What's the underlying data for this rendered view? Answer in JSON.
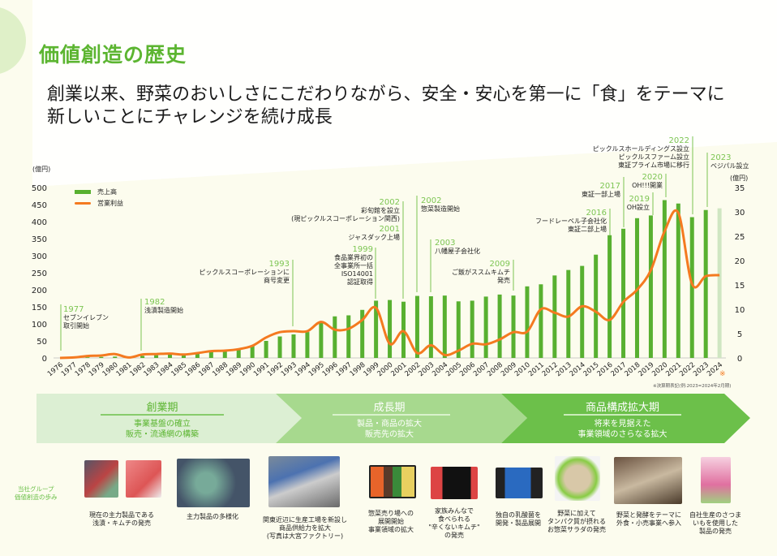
{
  "title": "価値創造の歴史",
  "subtitle": [
    "創業以来、野菜のおいしさにこだわりながら、安全・安心を第一に「食」をテーマに",
    "新しいことにチャレンジを続け成長"
  ],
  "chart_data": {
    "type": "bar+line",
    "x": [
      1976,
      1977,
      1978,
      1979,
      1980,
      1981,
      1982,
      1983,
      1984,
      1985,
      1986,
      1987,
      1988,
      1989,
      1990,
      1991,
      1992,
      1993,
      1994,
      1995,
      1996,
      1997,
      1998,
      1999,
      2000,
      2001,
      2002,
      2003,
      2004,
      2005,
      2006,
      2007,
      2008,
      2009,
      2010,
      2011,
      2012,
      2013,
      2014,
      2015,
      2016,
      2017,
      2018,
      2019,
      2020,
      2021,
      2022,
      2023,
      2024
    ],
    "series": [
      {
        "name": "売上高",
        "axis": "left",
        "type": "bar",
        "color": "#58b030",
        "values": [
          0,
          1,
          2,
          3,
          4,
          3,
          6,
          8,
          10,
          10,
          14,
          18,
          20,
          25,
          35,
          50,
          63,
          69,
          76,
          104,
          122,
          125,
          141,
          168,
          170,
          165,
          182,
          181,
          183,
          166,
          168,
          180,
          186,
          183,
          210,
          216,
          242,
          258,
          270,
          303,
          360,
          379,
          410,
          418,
          463,
          453,
          413,
          434,
          439
        ]
      },
      {
        "name": "営業利益",
        "axis": "right",
        "type": "line",
        "color": "#f47a20",
        "values": [
          0,
          0.1,
          0.4,
          0.5,
          0.8,
          0.1,
          0.7,
          0.8,
          0.9,
          0.7,
          1.0,
          1.4,
          1.5,
          1.8,
          2.5,
          4.2,
          5.3,
          5.5,
          5.5,
          7.4,
          5.8,
          6.0,
          7.8,
          10.3,
          2.9,
          5.5,
          1.0,
          2.6,
          0.6,
          1.5,
          2.9,
          2.8,
          3.8,
          5.3,
          5.4,
          10.0,
          9.3,
          8.5,
          10.6,
          9.5,
          7.8,
          11.5,
          14.0,
          18.0,
          26.0,
          29.8,
          15.2,
          16.8,
          17.0
        ]
      }
    ],
    "left_axis": {
      "label": "(億円)",
      "ticks": [
        0,
        50,
        100,
        150,
        200,
        250,
        300,
        350,
        400,
        450,
        500
      ],
      "range": [
        0,
        500
      ]
    },
    "right_axis": {
      "label": "(億円)",
      "ticks": [
        0,
        5,
        10,
        15,
        20,
        25,
        30,
        35
      ],
      "range": [
        0,
        35
      ]
    },
    "legend": {
      "placement": "top-left",
      "items": [
        "売上高",
        "営業利益"
      ]
    },
    "note_mark": "※",
    "footnote": "※決算期表記(例:2023=2024年2月期)",
    "annotations": [
      {
        "year": "1977",
        "text": [
          "セブンイレブン",
          "取引開始"
        ]
      },
      {
        "year": "1982",
        "text": [
          "浅漬製造開始"
        ]
      },
      {
        "year": "1993",
        "text": [
          "ピックルスコーポレーションに",
          "商号変更"
        ]
      },
      {
        "year": "1999",
        "text": [
          "食品業界初の",
          "全事業所一括",
          "ISO14001",
          "認証取得"
        ]
      },
      {
        "year": "2002",
        "text": [
          "彩旬館を設立",
          "(現ピックルスコーポレーション関西)"
        ]
      },
      {
        "year": "2001",
        "text": [
          "ジャスダック上場"
        ]
      },
      {
        "year": "2002",
        "text": [
          "惣菜製造開始"
        ]
      },
      {
        "year": "2003",
        "text": [
          "八幡屋子会社化"
        ]
      },
      {
        "year": "2009",
        "text": [
          "ご飯がススムキムチ",
          "発売"
        ]
      },
      {
        "year": "2016",
        "text": [
          "フードレーベル子会社化",
          "東証二部上場"
        ]
      },
      {
        "year": "2017",
        "text": [
          "東証一部上場"
        ]
      },
      {
        "year": "2019",
        "text": [
          "OH設立"
        ]
      },
      {
        "year": "2020",
        "text": [
          "OH!!!開業"
        ]
      },
      {
        "year": "2022",
        "text": [
          "ピックルスホールディングス設立",
          "ピックルスファーム設立",
          "東証プライム市場に移行"
        ]
      },
      {
        "year": "2023",
        "text": [
          "ベジパル設立"
        ]
      }
    ]
  },
  "phases": [
    {
      "name": "創業期",
      "desc": [
        "事業基盤の確立",
        "販売・流通網の構築"
      ],
      "color": "#dcefd3"
    },
    {
      "name": "成長期",
      "desc": [
        "製品・商品の拡大",
        "販売先の拡大"
      ],
      "color": "#a7d98e"
    },
    {
      "name": "商品構成拡大期",
      "desc": [
        "将来を見据えた",
        "事業領域のさらなる拡大"
      ],
      "color": "#6cc04a"
    }
  ],
  "side_label": [
    "当社グループ",
    "価値創造の歩み"
  ],
  "captions": [
    [
      "現在の主力製品である",
      "浅漬・キムチの発売"
    ],
    [
      "主力製品の多様化"
    ],
    [
      "関東近辺に生産工場を新設し",
      "商品供給力を拡大",
      "(写真は大宮ファクトリー)"
    ],
    [
      "惣菜売り場への",
      "展開開始",
      "事業領域の拡大"
    ],
    [
      "家族みんなで",
      "食べられる",
      "\"辛くないキムチ\"",
      "の発売"
    ],
    [
      "独自の乳酸菌を",
      "開発・製品展開"
    ],
    [
      "野菜に加えて",
      "タンパク質が摂れる",
      "お惣菜サラダの発売"
    ],
    [
      "野菜と発酵をテーマに",
      "外食・小売事業へ参入"
    ],
    [
      "自社生産のさつま",
      "いもを使用した",
      "製品の発売"
    ]
  ]
}
